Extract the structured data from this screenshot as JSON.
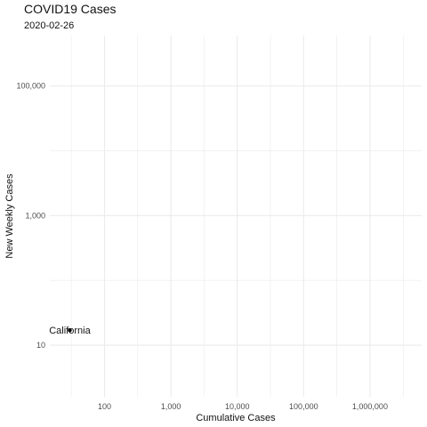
{
  "chart_data": {
    "type": "scatter",
    "title": "COVID19 Cases",
    "subtitle": "2020-02-26",
    "xlabel": "Cumulative Cases",
    "ylabel": "New Weekly Cases",
    "x_scale": "log10",
    "y_scale": "log10",
    "xlim": [
      15,
      6000000
    ],
    "ylim": [
      1.6,
      600000
    ],
    "x_ticks": [
      {
        "value": 100,
        "label": "100"
      },
      {
        "value": 1000,
        "label": "1,000"
      },
      {
        "value": 10000,
        "label": "10,000"
      },
      {
        "value": 100000,
        "label": "100,000"
      },
      {
        "value": 1000000,
        "label": "1,000,000"
      }
    ],
    "y_ticks": [
      {
        "value": 10,
        "label": "10"
      },
      {
        "value": 1000,
        "label": "1,000"
      },
      {
        "value": 100000,
        "label": "100,000"
      }
    ],
    "grid": true,
    "legend": "none",
    "points": [
      {
        "label": "California",
        "x": 30,
        "y": 17
      }
    ],
    "colors": {
      "grid": "#ebebeb",
      "point": "#000000"
    }
  }
}
